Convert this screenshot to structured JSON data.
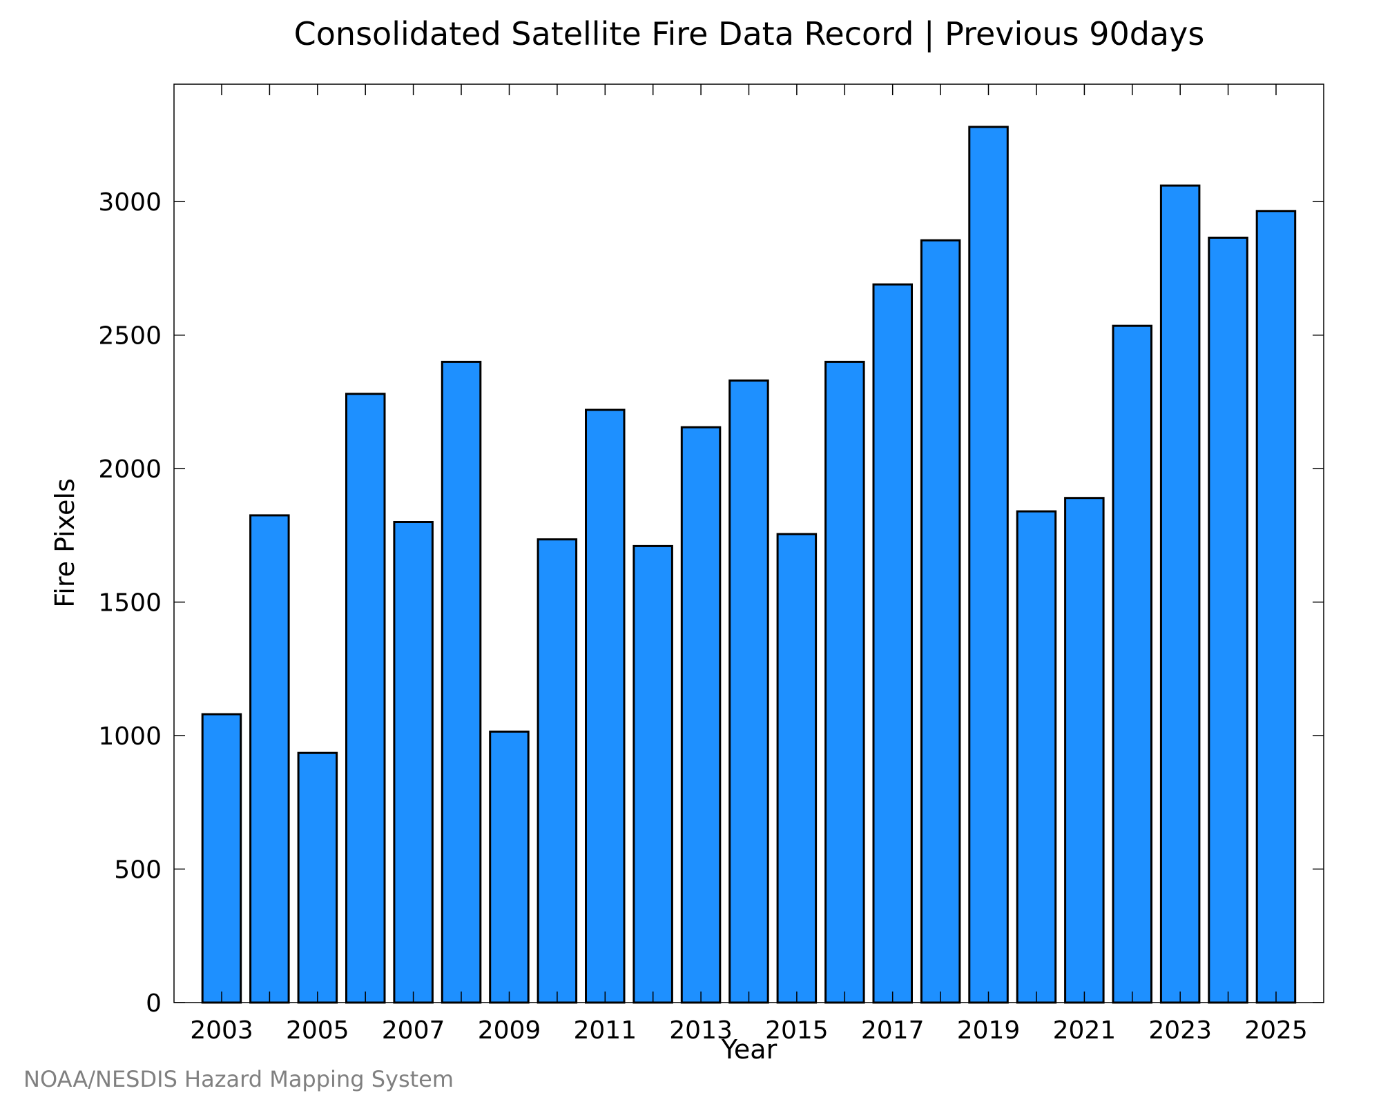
{
  "chart_data": {
    "type": "bar",
    "title": "Consolidated Satellite Fire Data Record | Previous 90days",
    "xlabel": "Year",
    "ylabel": "Fire Pixels",
    "categories": [
      "2003",
      "2004",
      "2005",
      "2006",
      "2007",
      "2008",
      "2009",
      "2010",
      "2011",
      "2012",
      "2013",
      "2014",
      "2015",
      "2016",
      "2017",
      "2018",
      "2019",
      "2020",
      "2021",
      "2022",
      "2023",
      "2024",
      "2025"
    ],
    "values": [
      1080,
      1825,
      935,
      2280,
      1800,
      2400,
      1015,
      1735,
      2220,
      1710,
      2155,
      2330,
      1755,
      2400,
      2690,
      2855,
      3280,
      1840,
      1890,
      2535,
      3060,
      2865,
      2965
    ],
    "xtick_labels": [
      "2003",
      "2005",
      "2007",
      "2009",
      "2011",
      "2013",
      "2015",
      "2017",
      "2019",
      "2021",
      "2023",
      "2025"
    ],
    "yticks": [
      0,
      500,
      1000,
      1500,
      2000,
      2500,
      3000
    ],
    "ylim": [
      0,
      3440
    ],
    "grid": false,
    "legend": "none",
    "bar_color": "#1e90ff",
    "edge_color": "#000000"
  },
  "footer": {
    "source": "NOAA/NESDIS Hazard Mapping System"
  }
}
